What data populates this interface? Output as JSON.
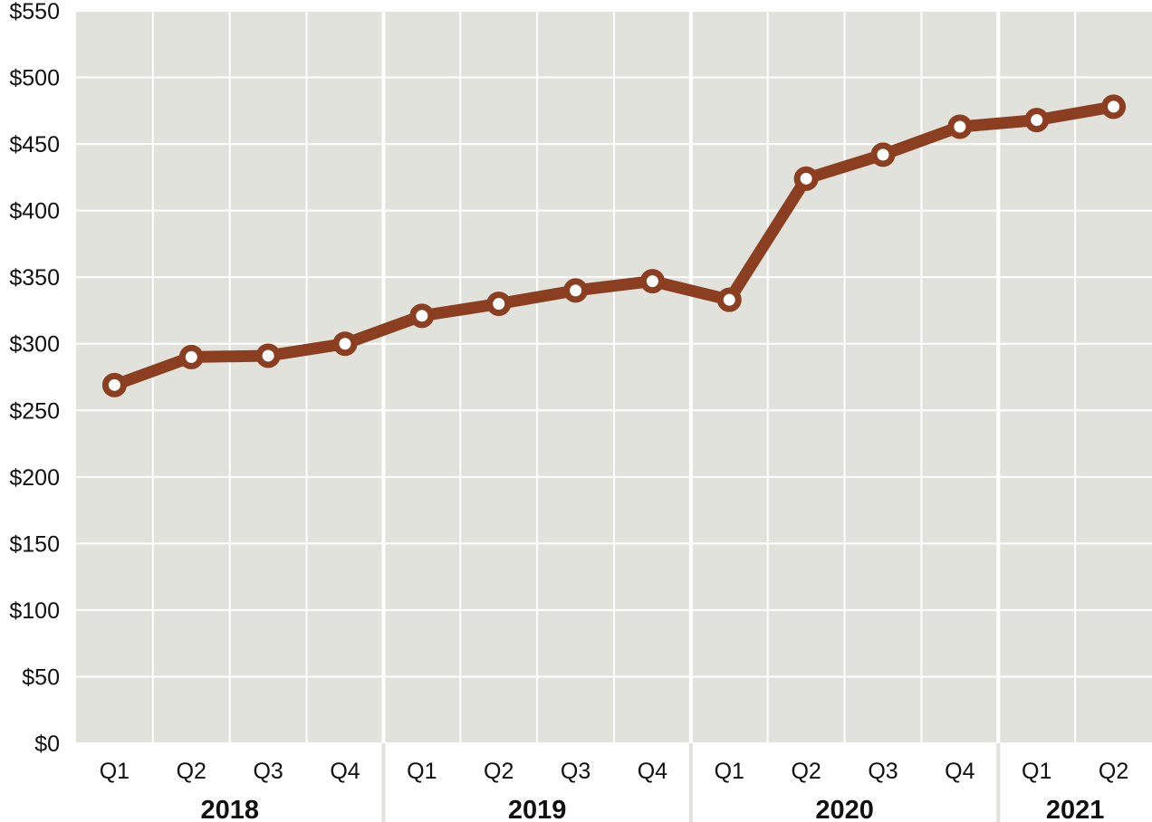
{
  "chart_data": {
    "type": "line",
    "title": "",
    "xlabel": "",
    "ylabel": "",
    "ylim": [
      0,
      550
    ],
    "y_ticks": [
      "$0",
      "$50",
      "$100",
      "$150",
      "$200",
      "$250",
      "$300",
      "$350",
      "$400",
      "$450",
      "$500",
      "$550"
    ],
    "y_tick_values": [
      0,
      50,
      100,
      150,
      200,
      250,
      300,
      350,
      400,
      450,
      500,
      550
    ],
    "categories": [
      "Q1",
      "Q2",
      "Q3",
      "Q4",
      "Q1",
      "Q2",
      "Q3",
      "Q4",
      "Q1",
      "Q2",
      "Q3",
      "Q4",
      "Q1",
      "Q2"
    ],
    "groups": [
      {
        "label": "2018",
        "count": 4
      },
      {
        "label": "2019",
        "count": 4
      },
      {
        "label": "2020",
        "count": 4
      },
      {
        "label": "2021",
        "count": 2
      }
    ],
    "series": [
      {
        "values": [
          269,
          290,
          291,
          300,
          321,
          330,
          340,
          347,
          333,
          424,
          442,
          463,
          468,
          478
        ]
      }
    ],
    "grid": true,
    "legend": "none",
    "colors": {
      "line": "#8b3e20",
      "marker_fill": "#ffffff",
      "plot_bg": "#e2e2dd",
      "grid": "#ffffff",
      "group_band": "#e2e2dd"
    }
  }
}
